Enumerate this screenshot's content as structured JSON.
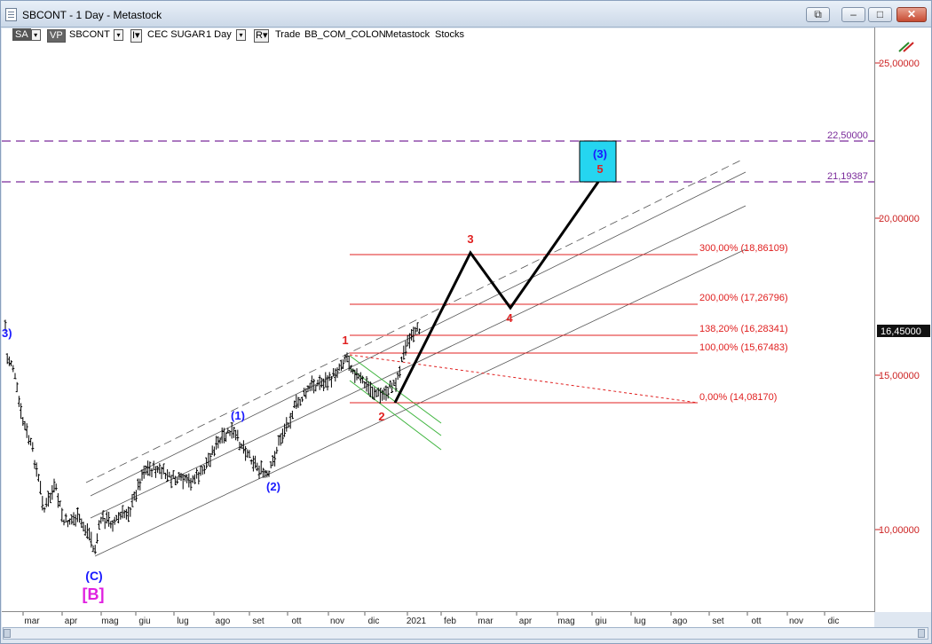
{
  "window": {
    "title": "SBCONT - 1 Day - Metastock",
    "buttons": {
      "restore_all": "⧉",
      "minimize": "–",
      "maximize": "□",
      "close": "✕"
    }
  },
  "toolbar": {
    "period": "SA",
    "vp": "VP",
    "symbol": "SBCONT",
    "name_label": "I▾",
    "description": "CEC SUGAR",
    "interval": "1 Day",
    "r_label": "R▾",
    "mode": "Trade",
    "source": "BB_COM_COLON",
    "app": "Metastock",
    "type": "Stocks"
  },
  "price_axis": {
    "ticks": [
      "25,00000",
      "20,00000",
      "15,00000",
      "10,00000"
    ],
    "current_price": "16,45000",
    "hline_labels": [
      "22,50000",
      "21,19387"
    ]
  },
  "date_axis": {
    "months": [
      "mar",
      "apr",
      "mag",
      "giu",
      "lug",
      "ago",
      "set",
      "ott",
      "nov",
      "dic",
      "2021",
      "feb",
      "mar",
      "apr",
      "mag",
      "giu",
      "lug",
      "ago",
      "set",
      "ott",
      "nov",
      "dic"
    ]
  },
  "fib_levels": [
    {
      "label": "300,00% (18,86109)"
    },
    {
      "label": "200,00% (17,26796)"
    },
    {
      "label": "138,20% (16,28341)"
    },
    {
      "label": "100,00% (15,67483)"
    },
    {
      "label": "0,00% (14,08170)"
    }
  ],
  "wave_labels": {
    "B_big": "[B]",
    "C": "(C)",
    "w1": "(1)",
    "w2": "(2)",
    "w3_left": "3)",
    "w3_target": "(3)",
    "m1": "1",
    "m2": "2",
    "m3": "3",
    "m4": "4",
    "m5": "5"
  },
  "colors": {
    "accent_red": "#e02020",
    "wave_blue": "#1a1aff",
    "magenta": "#e020e0",
    "purple_dash": "#7a2a9a",
    "target_box": "#25d5f0",
    "green_channel": "#3cb43c"
  }
}
